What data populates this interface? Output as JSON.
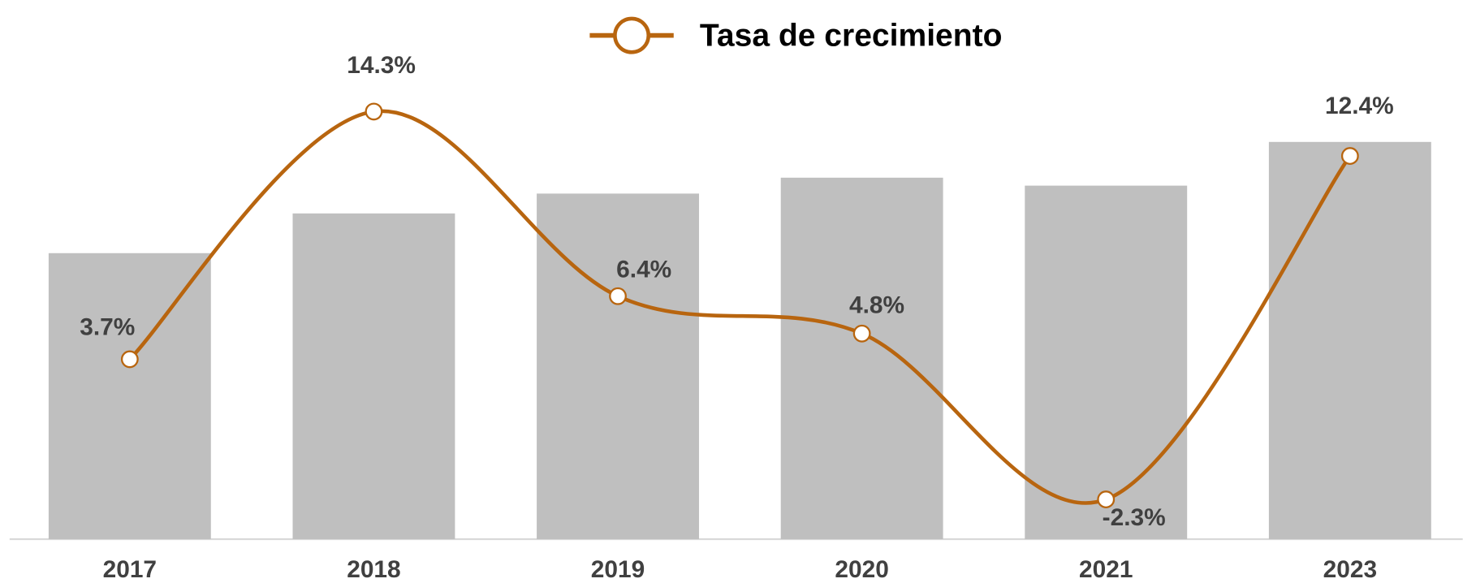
{
  "chart_data": {
    "type": "bar_line",
    "categories": [
      "2017",
      "2018",
      "2019",
      "2020",
      "2021",
      "2023"
    ],
    "series": [
      {
        "color": "#bfbfbf",
        "values": [
          72,
          82,
          87,
          91,
          89,
          100
        ]
      },
      {
        "name": "Tasa de crecimiento",
        "color": "#b8650f",
        "axis": "y2",
        "values": [
          3.7,
          14.3,
          6.4,
          4.8,
          -2.3,
          12.4
        ],
        "value_labels": [
          "3.7%",
          "14.3%",
          "6.4%",
          "4.8%",
          "-2.3%",
          "12.4%"
        ]
      }
    ],
    "ylim": [
      0,
      120
    ],
    "y2lim": [
      -4,
      16.4
    ],
    "legend": "top"
  }
}
